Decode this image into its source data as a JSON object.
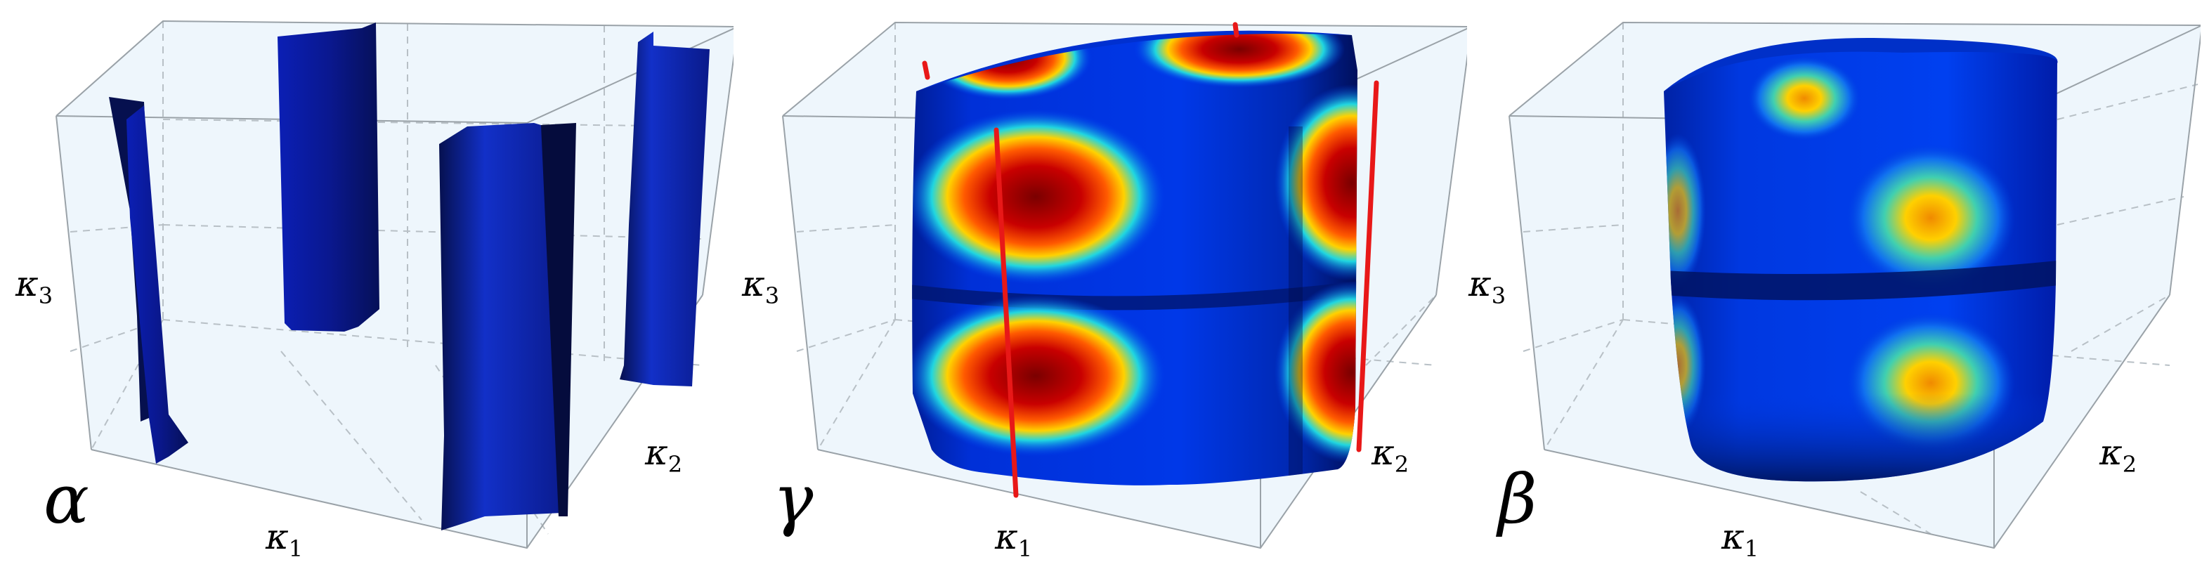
{
  "panels": [
    {
      "id": "alpha",
      "label": "α",
      "axes": {
        "x": {
          "sym": "κ",
          "sub": "1"
        },
        "y": {
          "sym": "κ",
          "sub": "2"
        },
        "z": {
          "sym": "κ",
          "sub": "3"
        }
      },
      "surface": "four disconnected vertical sheets",
      "colors": {
        "surface": "#0a1a9c",
        "surface_dark": "#06104f"
      }
    },
    {
      "id": "gamma",
      "label": "γ",
      "axes": {
        "x": {
          "sym": "κ",
          "sub": "1"
        },
        "y": {
          "sym": "κ",
          "sub": "2"
        },
        "z": {
          "sym": "κ",
          "sub": "3"
        }
      },
      "surface": "closed cylindrical sheet with hot spots",
      "colors": {
        "surface": "#0038e0",
        "hot": "#b30000",
        "line": "#e81818"
      }
    },
    {
      "id": "beta",
      "label": "β",
      "axes": {
        "x": {
          "sym": "κ",
          "sub": "1"
        },
        "y": {
          "sym": "κ",
          "sub": "2"
        },
        "z": {
          "sym": "κ",
          "sub": "3"
        }
      },
      "surface": "closed cylindrical sheet with weak hot spots",
      "colors": {
        "surface": "#0030d0",
        "hot": "#f0a000"
      }
    }
  ],
  "colors": {
    "box_fill": "#eef6fc",
    "box_edge": "#9aa2a8",
    "grid": "#b8c0c6"
  }
}
